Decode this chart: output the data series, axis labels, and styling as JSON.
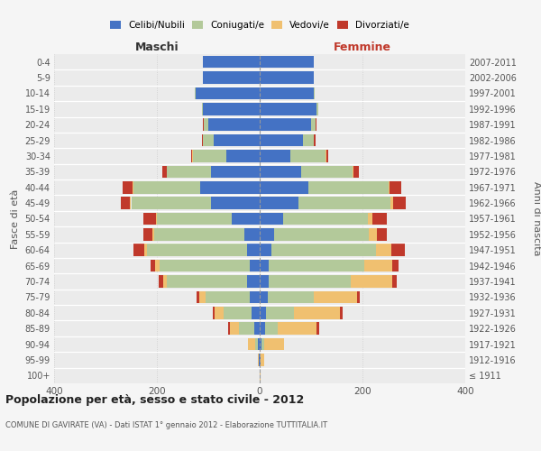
{
  "age_groups": [
    "100+",
    "95-99",
    "90-94",
    "85-89",
    "80-84",
    "75-79",
    "70-74",
    "65-69",
    "60-64",
    "55-59",
    "50-54",
    "45-49",
    "40-44",
    "35-39",
    "30-34",
    "25-29",
    "20-24",
    "15-19",
    "10-14",
    "5-9",
    "0-4"
  ],
  "birth_years": [
    "≤ 1911",
    "1912-1916",
    "1917-1921",
    "1922-1926",
    "1927-1931",
    "1932-1936",
    "1937-1941",
    "1942-1946",
    "1947-1951",
    "1952-1956",
    "1957-1961",
    "1962-1966",
    "1967-1971",
    "1972-1976",
    "1977-1981",
    "1982-1986",
    "1987-1991",
    "1992-1996",
    "1997-2001",
    "2002-2006",
    "2007-2011"
  ],
  "maschi": {
    "celibi": [
      0,
      1,
      3,
      10,
      15,
      20,
      25,
      20,
      25,
      30,
      55,
      95,
      115,
      95,
      65,
      90,
      100,
      110,
      125,
      110,
      110
    ],
    "coniugati": [
      0,
      0,
      5,
      30,
      55,
      85,
      155,
      175,
      195,
      175,
      145,
      155,
      130,
      85,
      65,
      20,
      8,
      3,
      2,
      1,
      1
    ],
    "vedovi": [
      0,
      3,
      15,
      18,
      18,
      12,
      8,
      8,
      5,
      3,
      2,
      2,
      2,
      1,
      1,
      1,
      1,
      0,
      0,
      0,
      0
    ],
    "divorziati": [
      0,
      0,
      0,
      3,
      3,
      5,
      8,
      10,
      20,
      18,
      25,
      18,
      20,
      8,
      3,
      2,
      1,
      0,
      0,
      0,
      0
    ]
  },
  "femmine": {
    "nubili": [
      0,
      1,
      3,
      10,
      12,
      15,
      18,
      18,
      22,
      28,
      45,
      75,
      95,
      80,
      60,
      85,
      100,
      110,
      105,
      105,
      105
    ],
    "coniugate": [
      0,
      0,
      5,
      25,
      55,
      90,
      160,
      185,
      205,
      185,
      165,
      180,
      155,
      100,
      68,
      20,
      8,
      4,
      2,
      1,
      1
    ],
    "vedove": [
      1,
      8,
      40,
      75,
      90,
      85,
      80,
      55,
      30,
      15,
      10,
      5,
      3,
      3,
      1,
      1,
      1,
      0,
      0,
      0,
      0
    ],
    "divorziate": [
      0,
      0,
      0,
      5,
      5,
      5,
      8,
      12,
      25,
      20,
      28,
      25,
      22,
      10,
      5,
      2,
      1,
      0,
      0,
      0,
      0
    ]
  },
  "colors": {
    "celibi": "#4472c4",
    "coniugati": "#b3c99a",
    "vedovi": "#f0c070",
    "divorziati": "#c0392b"
  },
  "legend_labels": [
    "Celibi/Nubili",
    "Coniugati/e",
    "Vedovi/e",
    "Divorziati/e"
  ],
  "legend_colors": [
    "#4472c4",
    "#b3c99a",
    "#f0c070",
    "#c0392b"
  ],
  "title": "Popolazione per età, sesso e stato civile - 2012",
  "subtitle": "COMUNE DI GAVIRATE (VA) - Dati ISTAT 1° gennaio 2012 - Elaborazione TUTTITALIA.IT",
  "label_maschi": "Maschi",
  "label_femmine": "Femmine",
  "ylabel_left": "Fasce di età",
  "ylabel_right": "Anni di nascita",
  "xlim": 400,
  "bg_color": "#f5f5f5",
  "plot_bg": "#ebebeb",
  "bar_height": 0.78
}
